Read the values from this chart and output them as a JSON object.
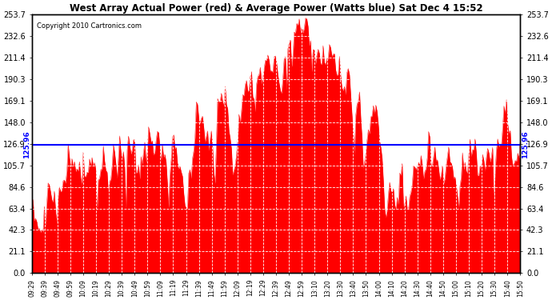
{
  "title": "West Array Actual Power (red) & Average Power (Watts blue) Sat Dec 4 15:52",
  "copyright": "Copyright 2010 Cartronics.com",
  "average_power": 125.96,
  "y_max": 253.7,
  "y_min": 0.0,
  "y_ticks": [
    0.0,
    21.1,
    42.3,
    63.4,
    84.6,
    105.7,
    126.9,
    148.0,
    169.1,
    190.3,
    211.4,
    232.6,
    253.7
  ],
  "background_color": "#ffffff",
  "fill_color": "#ff0000",
  "line_color": "#0000ff",
  "grid_color": "#cccccc",
  "x_labels": [
    "09:29",
    "09:39",
    "09:49",
    "09:59",
    "10:09",
    "10:19",
    "10:29",
    "10:39",
    "10:49",
    "10:59",
    "11:09",
    "11:19",
    "11:29",
    "11:39",
    "11:49",
    "11:59",
    "12:09",
    "12:19",
    "12:29",
    "12:39",
    "12:49",
    "12:59",
    "13:10",
    "13:20",
    "13:30",
    "13:40",
    "13:50",
    "14:00",
    "14:10",
    "14:20",
    "14:30",
    "14:40",
    "14:50",
    "15:00",
    "15:10",
    "15:20",
    "15:30",
    "15:40",
    "15:50"
  ],
  "seed": 10,
  "n_points": 390,
  "envelope_keypoints_x": [
    0.0,
    0.02,
    0.05,
    0.09,
    0.12,
    0.16,
    0.19,
    0.22,
    0.26,
    0.3,
    0.33,
    0.37,
    0.4,
    0.44,
    0.47,
    0.5,
    0.54,
    0.57,
    0.6,
    0.63,
    0.67,
    0.7,
    0.73,
    0.76,
    0.8,
    0.83,
    0.87,
    0.9,
    0.93,
    0.97,
    1.0
  ],
  "envelope_keypoints_y": [
    55,
    65,
    80,
    95,
    100,
    108,
    115,
    120,
    128,
    135,
    148,
    155,
    172,
    168,
    195,
    220,
    248,
    230,
    210,
    195,
    185,
    170,
    75,
    85,
    90,
    110,
    100,
    95,
    120,
    135,
    130
  ]
}
